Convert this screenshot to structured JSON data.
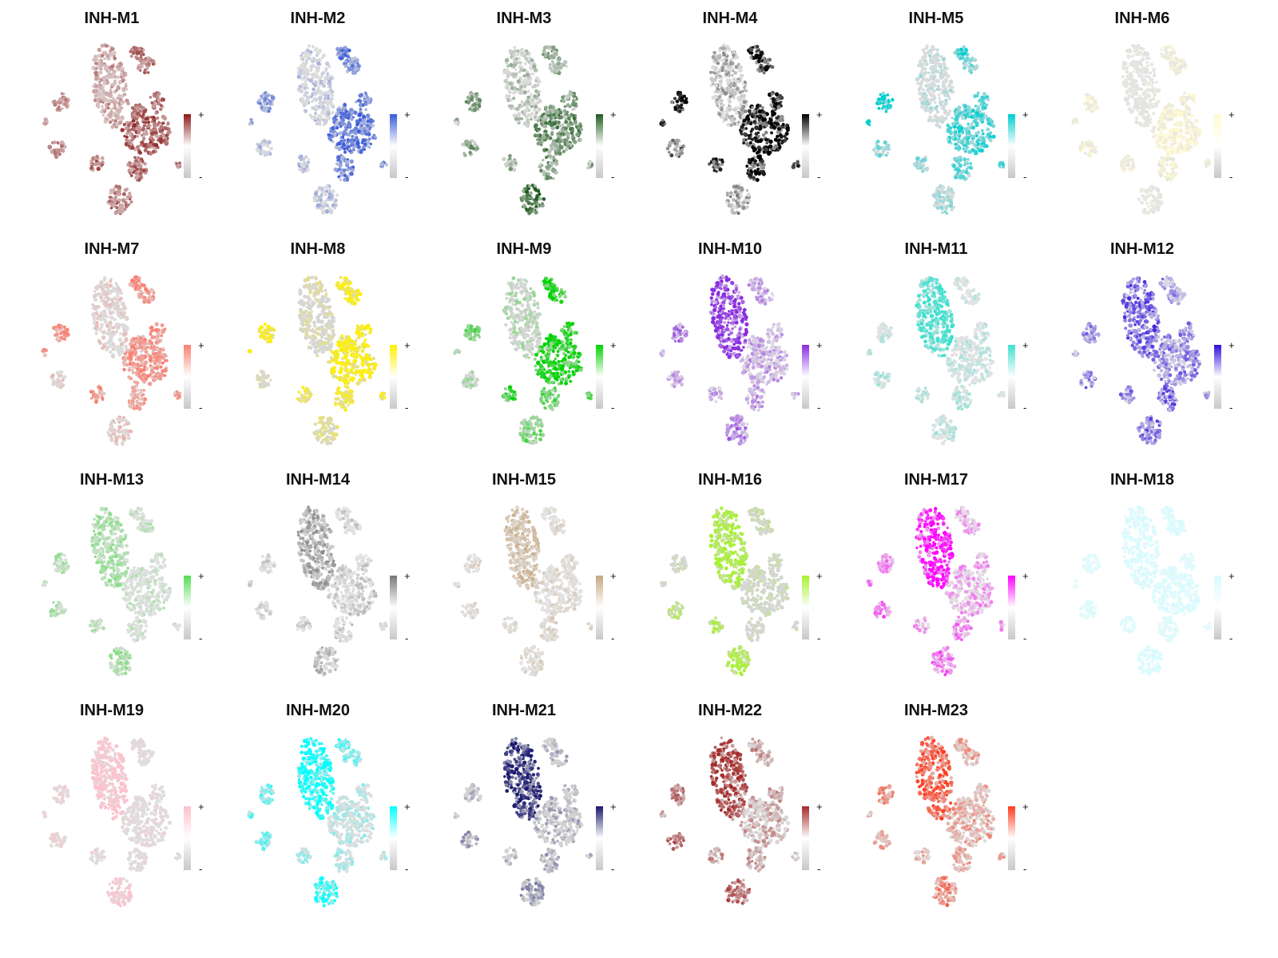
{
  "chart_data": {
    "type": "scatter",
    "layout": "grid 4 rows x 6 columns; each panel is a UMAP feature plot of module score with a colour bar legend",
    "legend": {
      "high_label": "+",
      "low_label": "-",
      "low_color": "#c8c8c8",
      "placement": "right of each panel"
    },
    "clusters": [
      {
        "id": "main",
        "role": "large elongated cluster"
      },
      {
        "id": "topright_a"
      },
      {
        "id": "topright_b"
      },
      {
        "id": "left_outer"
      },
      {
        "id": "left_small"
      },
      {
        "id": "left_lower"
      },
      {
        "id": "mid_small"
      },
      {
        "id": "bottom"
      },
      {
        "id": "right_big"
      },
      {
        "id": "right_upper"
      },
      {
        "id": "right_mid"
      },
      {
        "id": "right_lower"
      },
      {
        "id": "right_edge"
      }
    ],
    "panels": [
      {
        "title": "INH-M1",
        "color": "#8B1A1A",
        "background_tint": "#d9c4c4",
        "enrichment": {
          "main": 0.15,
          "topright_a": 0.5,
          "topright_b": 0.4,
          "left_outer": 0.3,
          "left_small": 0.3,
          "left_lower": 0.3,
          "mid_small": 0.5,
          "bottom": 0.4,
          "right_big": 0.6,
          "right_upper": 0.5,
          "right_mid": 0.5,
          "right_lower": 0.5,
          "right_edge": 0.4
        }
      },
      {
        "title": "INH-M2",
        "color": "#3B5BD9",
        "background_tint": "#dcdcdc",
        "enrichment": {
          "main": 0.05,
          "topright_a": 0.7,
          "topright_b": 0.6,
          "left_outer": 0.5,
          "left_small": 0.3,
          "left_lower": 0.2,
          "mid_small": 0.2,
          "bottom": 0.1,
          "right_big": 0.8,
          "right_upper": 0.7,
          "right_mid": 0.7,
          "right_lower": 0.8,
          "right_edge": 0.6
        }
      },
      {
        "title": "INH-M3",
        "color": "#1F5C1F",
        "background_tint": "#dcdcdc",
        "enrichment": {
          "main": 0.1,
          "topright_a": 0.4,
          "topright_b": 0.3,
          "left_outer": 0.6,
          "left_small": 0.3,
          "left_lower": 0.4,
          "mid_small": 0.3,
          "bottom": 0.8,
          "right_big": 0.6,
          "right_upper": 0.4,
          "right_mid": 0.5,
          "right_lower": 0.5,
          "right_edge": 0.3
        }
      },
      {
        "title": "INH-M4",
        "color": "#000000",
        "background_tint": "#dcdcdc",
        "enrichment": {
          "main": 0.1,
          "topright_a": 0.9,
          "topright_b": 0.8,
          "left_outer": 1.0,
          "left_small": 0.9,
          "left_lower": 0.5,
          "mid_small": 0.7,
          "bottom": 0.2,
          "right_big": 0.95,
          "right_upper": 0.8,
          "right_mid": 0.9,
          "right_lower": 0.9,
          "right_edge": 0.8
        }
      },
      {
        "title": "INH-M5",
        "color": "#00CED1",
        "background_tint": "#dcdcdc",
        "enrichment": {
          "main": 0.05,
          "topright_a": 0.9,
          "topright_b": 0.4,
          "left_outer": 1.0,
          "left_small": 0.9,
          "left_lower": 0.3,
          "mid_small": 0.4,
          "bottom": 0.2,
          "right_big": 0.7,
          "right_upper": 0.6,
          "right_mid": 0.6,
          "right_lower": 0.5,
          "right_edge": 0.6
        }
      },
      {
        "title": "INH-M6",
        "color": "#FFFACD",
        "background_tint": "#e3e3e3",
        "enrichment": {
          "main": 0.05,
          "topright_a": 0.5,
          "topright_b": 0.5,
          "left_outer": 0.6,
          "left_small": 0.5,
          "left_lower": 0.5,
          "mid_small": 0.5,
          "bottom": 0.1,
          "right_big": 0.8,
          "right_upper": 0.6,
          "right_mid": 0.7,
          "right_lower": 0.6,
          "right_edge": 0.5
        }
      },
      {
        "title": "INH-M7",
        "color": "#FA8072",
        "background_tint": "#dcdcdc",
        "enrichment": {
          "main": 0.05,
          "topright_a": 0.9,
          "topright_b": 0.8,
          "left_outer": 0.9,
          "left_small": 0.8,
          "left_lower": 0.1,
          "mid_small": 0.8,
          "bottom": 0.2,
          "right_big": 0.8,
          "right_upper": 0.8,
          "right_mid": 0.8,
          "right_lower": 0.6,
          "right_edge": 0.7
        }
      },
      {
        "title": "INH-M8",
        "color": "#FFF000",
        "background_tint": "#d6d6d6",
        "enrichment": {
          "main": 0.05,
          "topright_a": 0.9,
          "topright_b": 0.8,
          "left_outer": 0.9,
          "left_small": 0.8,
          "left_lower": 0.1,
          "mid_small": 0.6,
          "bottom": 0.3,
          "right_big": 0.95,
          "right_upper": 0.9,
          "right_mid": 0.9,
          "right_lower": 0.7,
          "right_edge": 0.8
        }
      },
      {
        "title": "INH-M9",
        "color": "#00D400",
        "background_tint": "#d6d6d6",
        "enrichment": {
          "main": 0.05,
          "topright_a": 0.9,
          "topright_b": 0.9,
          "left_outer": 0.4,
          "left_small": 0.3,
          "left_lower": 0.1,
          "mid_small": 0.9,
          "bottom": 0.4,
          "right_big": 0.95,
          "right_upper": 0.9,
          "right_mid": 0.9,
          "right_lower": 0.5,
          "right_edge": 0.6
        }
      },
      {
        "title": "INH-M10",
        "color": "#8A2BE2",
        "background_tint": "#e3e3e3",
        "enrichment": {
          "main": 0.95,
          "topright_a": 0.3,
          "topright_b": 0.3,
          "left_outer": 0.5,
          "left_small": 0.2,
          "left_lower": 0.3,
          "mid_small": 0.3,
          "bottom": 0.5,
          "right_big": 0.3,
          "right_upper": 0.3,
          "right_mid": 0.3,
          "right_lower": 0.3,
          "right_edge": 0.3
        }
      },
      {
        "title": "INH-M11",
        "color": "#40E0D0",
        "background_tint": "#e3e3e3",
        "enrichment": {
          "main": 0.9,
          "topright_a": 0.1,
          "topright_b": 0.1,
          "left_outer": 0.1,
          "left_small": 0.1,
          "left_lower": 0.2,
          "mid_small": 0.2,
          "bottom": 0.2,
          "right_big": 0.1,
          "right_upper": 0.1,
          "right_mid": 0.1,
          "right_lower": 0.2,
          "right_edge": 0.1
        }
      },
      {
        "title": "INH-M12",
        "color": "#2E10E0",
        "background_tint": "#e3e3e3",
        "enrichment": {
          "main": 0.6,
          "topright_a": 0.3,
          "topright_b": 0.3,
          "left_outer": 0.4,
          "left_small": 0.3,
          "left_lower": 0.5,
          "mid_small": 0.4,
          "bottom": 0.5,
          "right_big": 0.4,
          "right_upper": 0.4,
          "right_mid": 0.4,
          "right_lower": 0.5,
          "right_edge": 0.4
        }
      },
      {
        "title": "INH-M13",
        "color": "#55DD55",
        "background_tint": "#e0e0e0",
        "enrichment": {
          "main": 0.4,
          "topright_a": 0.1,
          "topright_b": 0.1,
          "left_outer": 0.3,
          "left_small": 0.2,
          "left_lower": 0.3,
          "mid_small": 0.2,
          "bottom": 0.4,
          "right_big": 0.05,
          "right_upper": 0.05,
          "right_mid": 0.05,
          "right_lower": 0.05,
          "right_edge": 0.05
        }
      },
      {
        "title": "INH-M14",
        "color": "#777777",
        "background_tint": "#e3e3e3",
        "enrichment": {
          "main": 0.5,
          "topright_a": 0.1,
          "topright_b": 0.1,
          "left_outer": 0.1,
          "left_small": 0.1,
          "left_lower": 0.1,
          "mid_small": 0.1,
          "bottom": 0.3,
          "right_big": 0.1,
          "right_upper": 0.1,
          "right_mid": 0.1,
          "right_lower": 0.1,
          "right_edge": 0.1
        }
      },
      {
        "title": "INH-M15",
        "color": "#C8A882",
        "background_tint": "#e3e3e3",
        "enrichment": {
          "main": 0.6,
          "topright_a": 0.1,
          "topright_b": 0.1,
          "left_outer": 0.1,
          "left_small": 0.1,
          "left_lower": 0.1,
          "mid_small": 0.1,
          "bottom": 0.2,
          "right_big": 0.1,
          "right_upper": 0.1,
          "right_mid": 0.1,
          "right_lower": 0.2,
          "right_edge": 0.1
        }
      },
      {
        "title": "INH-M16",
        "color": "#A6F22E",
        "background_tint": "#d6d6d6",
        "enrichment": {
          "main": 0.9,
          "topright_a": 0.2,
          "topright_b": 0.2,
          "left_outer": 0.05,
          "left_small": 0.05,
          "left_lower": 0.5,
          "mid_small": 0.7,
          "bottom": 0.8,
          "right_big": 0.05,
          "right_upper": 0.05,
          "right_mid": 0.05,
          "right_lower": 0.05,
          "right_edge": 0.05
        }
      },
      {
        "title": "INH-M17",
        "color": "#FF00FF",
        "background_tint": "#e3e3e3",
        "enrichment": {
          "main": 0.95,
          "topright_a": 0.2,
          "topright_b": 0.2,
          "left_outer": 0.4,
          "left_small": 0.3,
          "left_lower": 0.5,
          "mid_small": 0.3,
          "bottom": 0.5,
          "right_big": 0.2,
          "right_upper": 0.2,
          "right_mid": 0.2,
          "right_lower": 0.4,
          "right_edge": 0.2
        }
      },
      {
        "title": "INH-M18",
        "color": "#D7FBFF",
        "background_tint": "#eef8f8",
        "enrichment": {
          "main": 0.9,
          "topright_a": 0.8,
          "topright_b": 0.8,
          "left_outer": 0.6,
          "left_small": 0.5,
          "left_lower": 0.6,
          "mid_small": 0.7,
          "bottom": 0.8,
          "right_big": 0.8,
          "right_upper": 0.8,
          "right_mid": 0.8,
          "right_lower": 0.7,
          "right_edge": 0.8
        }
      },
      {
        "title": "INH-M19",
        "color": "#FFC0CB",
        "background_tint": "#dedede",
        "enrichment": {
          "main": 0.9,
          "topright_a": 0.1,
          "topright_b": 0.1,
          "left_outer": 0.4,
          "left_small": 0.3,
          "left_lower": 0.4,
          "mid_small": 0.2,
          "bottom": 0.7,
          "right_big": 0.1,
          "right_upper": 0.1,
          "right_mid": 0.1,
          "right_lower": 0.1,
          "right_edge": 0.1
        }
      },
      {
        "title": "INH-M20",
        "color": "#00FFFF",
        "background_tint": "#dedede",
        "enrichment": {
          "main": 0.95,
          "topright_a": 0.5,
          "topright_b": 0.4,
          "left_outer": 0.6,
          "left_small": 0.5,
          "left_lower": 0.5,
          "mid_small": 0.3,
          "bottom": 0.8,
          "right_big": 0.1,
          "right_upper": 0.1,
          "right_mid": 0.1,
          "right_lower": 0.2,
          "right_edge": 0.1
        }
      },
      {
        "title": "INH-M21",
        "color": "#191970",
        "background_tint": "#d3d3d3",
        "enrichment": {
          "main": 0.85,
          "topright_a": 0.05,
          "topright_b": 0.05,
          "left_outer": 0.05,
          "left_small": 0.05,
          "left_lower": 0.2,
          "mid_small": 0.05,
          "bottom": 0.2,
          "right_big": 0.05,
          "right_upper": 0.05,
          "right_mid": 0.05,
          "right_lower": 0.1,
          "right_edge": 0.05
        }
      },
      {
        "title": "INH-M22",
        "color": "#A52A2A",
        "background_tint": "#dcdcdc",
        "enrichment": {
          "main": 0.85,
          "topright_a": 0.3,
          "topright_b": 0.3,
          "left_outer": 0.5,
          "left_small": 0.3,
          "left_lower": 0.6,
          "mid_small": 0.3,
          "bottom": 0.6,
          "right_big": 0.2,
          "right_upper": 0.3,
          "right_mid": 0.2,
          "right_lower": 0.3,
          "right_edge": 0.2
        }
      },
      {
        "title": "INH-M23",
        "color": "#FF3B1F",
        "background_tint": "#dcdcdc",
        "enrichment": {
          "main": 0.8,
          "topright_a": 0.3,
          "topright_b": 0.3,
          "left_outer": 0.4,
          "left_small": 0.2,
          "left_lower": 0.3,
          "mid_small": 0.2,
          "bottom": 0.5,
          "right_big": 0.3,
          "right_upper": 0.3,
          "right_mid": 0.3,
          "right_lower": 0.3,
          "right_edge": 0.2
        }
      }
    ]
  }
}
